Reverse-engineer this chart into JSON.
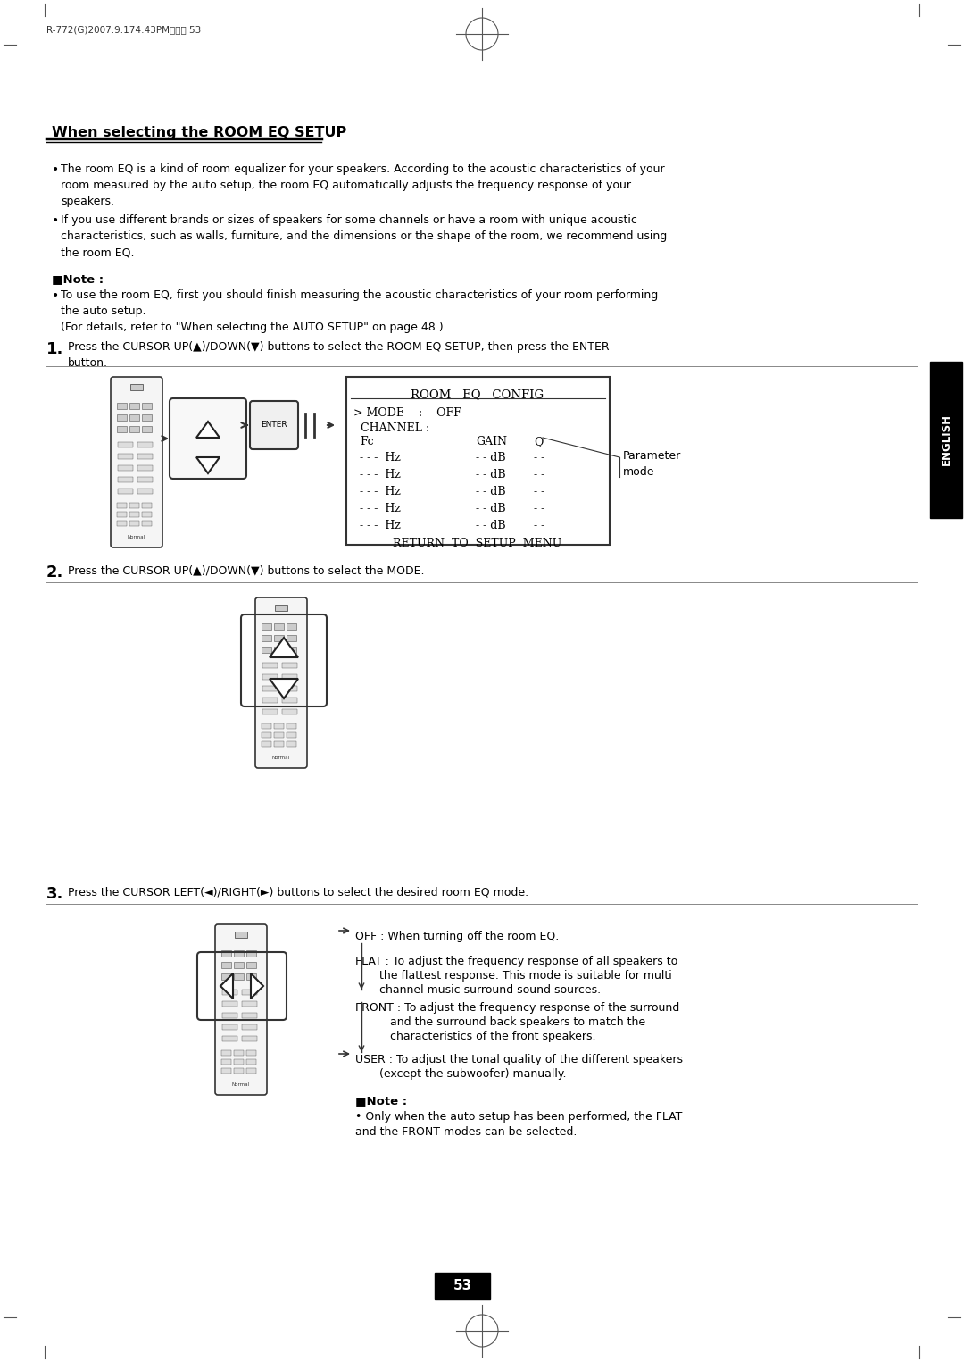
{
  "page_header": "R-772(G)2007.9.174:43PM알이지 53",
  "title": "When selecting the ROOM EQ SETUP",
  "bullet1": "The room EQ is a kind of room equalizer for your speakers. According to the acoustic characteristics of your\nroom measured by the auto setup, the room EQ automatically adjusts the frequency response of your\nspeakers.",
  "bullet2": "If you use different brands or sizes of speakers for some channels or have a room with unique acoustic\ncharacteristics, such as walls, furniture, and the dimensions or the shape of the room, we recommend using\nthe room EQ.",
  "note_label": "■Note :",
  "note_text": "To use the room EQ, first you should finish measuring the acoustic characteristics of your room performing\nthe auto setup.\n(For details, refer to \"When selecting the AUTO SETUP\" on page 48.)",
  "step1_label": "1.",
  "step1_text": "Press the CURSOR UP(▲)/DOWN(▼) buttons to select the ROOM EQ SETUP, then press the ENTER\nbutton.",
  "step2_label": "2.",
  "step2_text": "Press the CURSOR UP(▲)/DOWN(▼) buttons to select the MODE.",
  "step3_label": "3.",
  "step3_text": "Press the CURSOR LEFT(◄)/RIGHT(►) buttons to select the desired room EQ mode.",
  "note2_label": "■Note :",
  "note2_text": "Only when the auto setup has been performed, the FLAT\nand the FRONT modes can be selected.",
  "page_number": "53",
  "english_tab": "ENGLISH",
  "bg_color": "#ffffff",
  "text_color": "#000000",
  "tab_bg": "#000000",
  "tab_text": "#ffffff"
}
